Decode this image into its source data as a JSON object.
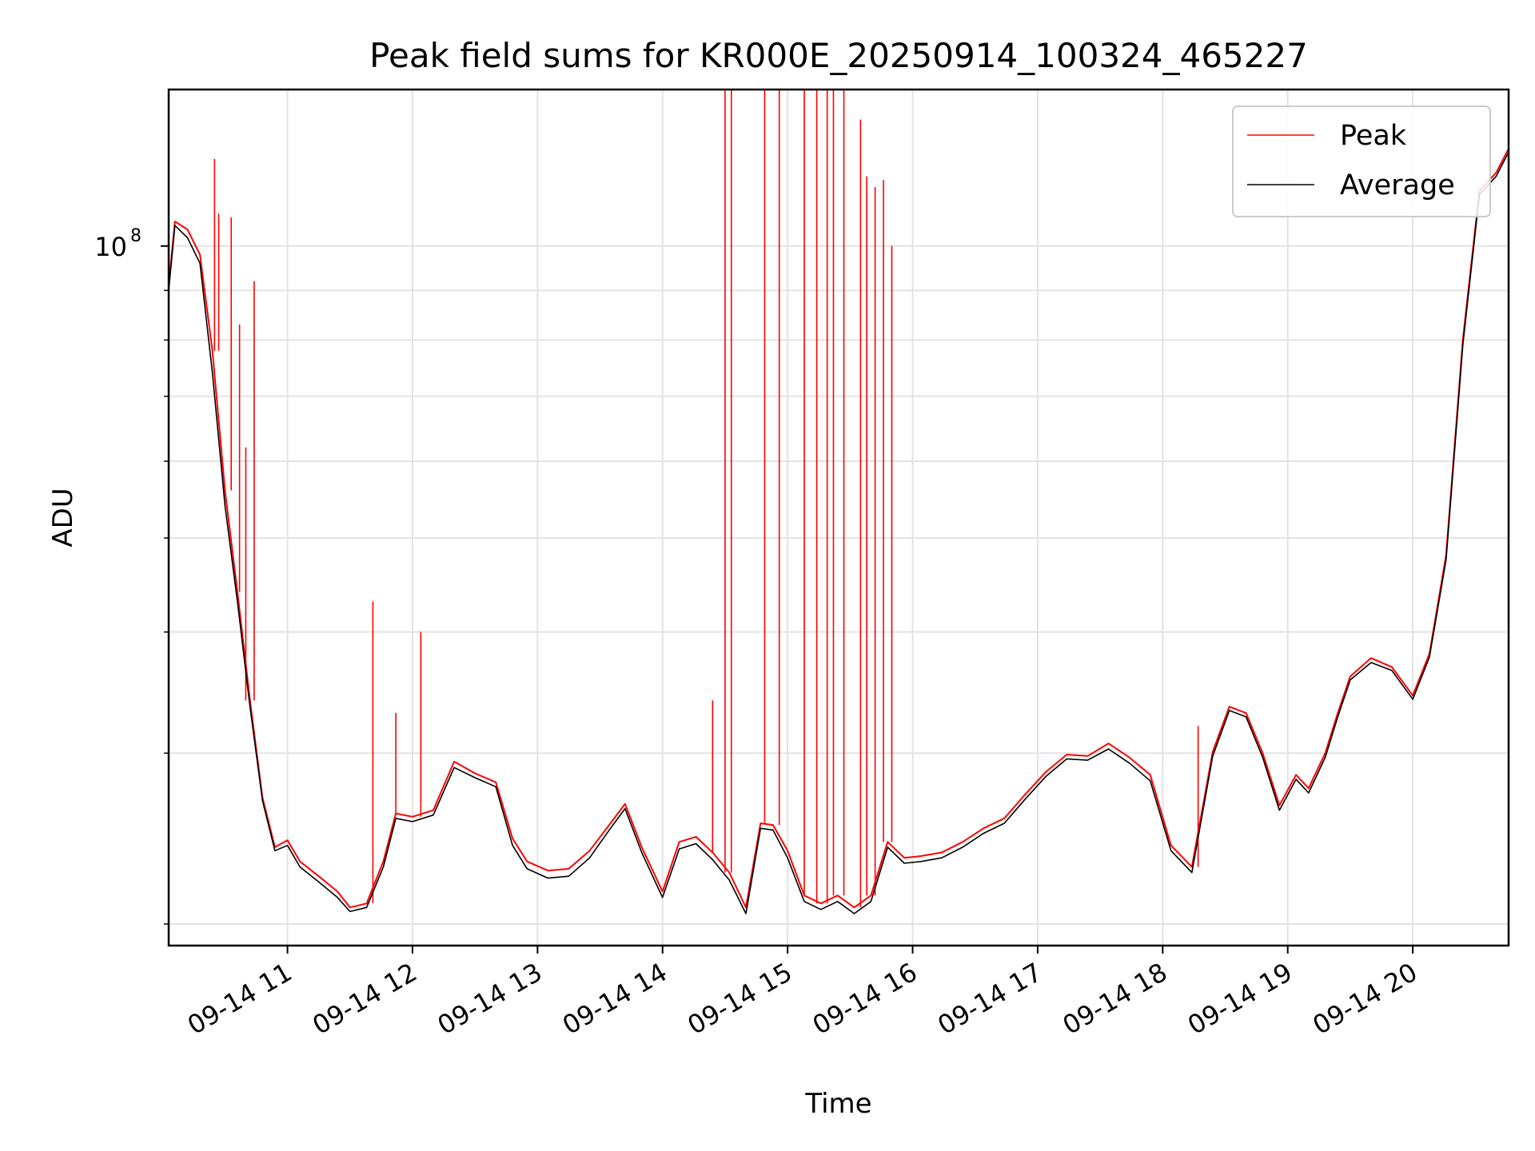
{
  "chart_data": {
    "type": "line",
    "title": "Peak field sums for KR000E_20250914_100324_465227",
    "xlabel": "Time",
    "ylabel": "ADU",
    "yscale": "log",
    "ylim": [
      19000000,
      145000000
    ],
    "xlim": [
      "2025-09-14 10:03",
      "2025-09-14 20:46"
    ],
    "grid": true,
    "legend_position": "top-right",
    "x_tick_labels": [
      "09-14 11",
      "09-14 12",
      "09-14 13",
      "09-14 14",
      "09-14 15",
      "09-14 16",
      "09-14 17",
      "09-14 18",
      "09-14 19",
      "09-14 20"
    ],
    "x_ticks": [
      "2025-09-14 11:00",
      "2025-09-14 12:00",
      "2025-09-14 13:00",
      "2025-09-14 14:00",
      "2025-09-14 15:00",
      "2025-09-14 16:00",
      "2025-09-14 17:00",
      "2025-09-14 18:00",
      "2025-09-14 19:00",
      "2025-09-14 20:00"
    ],
    "y_tick_labels": [
      {
        "base": "10",
        "exp": "8",
        "value": 100000000
      }
    ],
    "y_minor_ticks": [
      20000000,
      30000000,
      40000000,
      50000000,
      60000000,
      70000000,
      80000000,
      90000000,
      200000000
    ],
    "series": [
      {
        "name": "Peak",
        "color": "#ff0000",
        "x": [
          "2025-09-14 10:03",
          "2025-09-14 10:06",
          "2025-09-14 10:12",
          "2025-09-14 10:18",
          "2025-09-14 10:24",
          "2025-09-14 10:30",
          "2025-09-14 10:36",
          "2025-09-14 10:42",
          "2025-09-14 10:48",
          "2025-09-14 10:54",
          "2025-09-14 11:00",
          "2025-09-14 11:06",
          "2025-09-14 11:15",
          "2025-09-14 11:24",
          "2025-09-14 11:30",
          "2025-09-14 11:38",
          "2025-09-14 11:46",
          "2025-09-14 11:52",
          "2025-09-14 12:00",
          "2025-09-14 12:10",
          "2025-09-14 12:20",
          "2025-09-14 12:30",
          "2025-09-14 12:40",
          "2025-09-14 12:48",
          "2025-09-14 12:55",
          "2025-09-14 13:05",
          "2025-09-14 13:15",
          "2025-09-14 13:25",
          "2025-09-14 13:35",
          "2025-09-14 13:42",
          "2025-09-14 13:50",
          "2025-09-14 14:00",
          "2025-09-14 14:08",
          "2025-09-14 14:16",
          "2025-09-14 14:24",
          "2025-09-14 14:32",
          "2025-09-14 14:40",
          "2025-09-14 14:47",
          "2025-09-14 14:53",
          "2025-09-14 15:00",
          "2025-09-14 15:08",
          "2025-09-14 15:16",
          "2025-09-14 15:24",
          "2025-09-14 15:32",
          "2025-09-14 15:40",
          "2025-09-14 15:48",
          "2025-09-14 15:56",
          "2025-09-14 16:04",
          "2025-09-14 16:14",
          "2025-09-14 16:24",
          "2025-09-14 16:34",
          "2025-09-14 16:44",
          "2025-09-14 16:54",
          "2025-09-14 17:04",
          "2025-09-14 17:14",
          "2025-09-14 17:24",
          "2025-09-14 17:34",
          "2025-09-14 17:44",
          "2025-09-14 17:54",
          "2025-09-14 18:04",
          "2025-09-14 18:14",
          "2025-09-14 18:24",
          "2025-09-14 18:32",
          "2025-09-14 18:40",
          "2025-09-14 18:48",
          "2025-09-14 18:56",
          "2025-09-14 19:04",
          "2025-09-14 19:10",
          "2025-09-14 19:18",
          "2025-09-14 19:24",
          "2025-09-14 19:30",
          "2025-09-14 19:40",
          "2025-09-14 19:50",
          "2025-09-14 20:00",
          "2025-09-14 20:08",
          "2025-09-14 20:16",
          "2025-09-14 20:24",
          "2025-09-14 20:32",
          "2025-09-14 20:40",
          "2025-09-14 20:46"
        ],
        "values": [
          91000000,
          106000000,
          104000000,
          98000000,
          78000000,
          56000000,
          44000000,
          34000000,
          27000000,
          24000000,
          24400000,
          23200000,
          22400000,
          21600000,
          20800000,
          21000000,
          23200000,
          26000000,
          25800000,
          26200000,
          29400000,
          28600000,
          28000000,
          24500000,
          23200000,
          22700000,
          22800000,
          23800000,
          25400000,
          26600000,
          24000000,
          21600000,
          24300000,
          24600000,
          23700000,
          22600000,
          20800000,
          25400000,
          25300000,
          23800000,
          21400000,
          21000000,
          21400000,
          20800000,
          21400000,
          24300000,
          23400000,
          23500000,
          23700000,
          24300000,
          25100000,
          25700000,
          27200000,
          28700000,
          29900000,
          29800000,
          30700000,
          29700000,
          28500000,
          24100000,
          22900000,
          30100000,
          33500000,
          33000000,
          30000000,
          26500000,
          28500000,
          27600000,
          30000000,
          33000000,
          36000000,
          37600000,
          36800000,
          34400000,
          38000000,
          48000000,
          80000000,
          114000000,
          119000000,
          126000000
        ]
      },
      {
        "name": "Average",
        "color": "#000000",
        "x": [
          "2025-09-14 10:03",
          "2025-09-14 10:06",
          "2025-09-14 10:12",
          "2025-09-14 10:18",
          "2025-09-14 10:24",
          "2025-09-14 10:30",
          "2025-09-14 10:36",
          "2025-09-14 10:42",
          "2025-09-14 10:48",
          "2025-09-14 10:54",
          "2025-09-14 11:00",
          "2025-09-14 11:06",
          "2025-09-14 11:15",
          "2025-09-14 11:24",
          "2025-09-14 11:30",
          "2025-09-14 11:38",
          "2025-09-14 11:46",
          "2025-09-14 11:52",
          "2025-09-14 12:00",
          "2025-09-14 12:10",
          "2025-09-14 12:20",
          "2025-09-14 12:30",
          "2025-09-14 12:40",
          "2025-09-14 12:48",
          "2025-09-14 12:55",
          "2025-09-14 13:05",
          "2025-09-14 13:15",
          "2025-09-14 13:25",
          "2025-09-14 13:35",
          "2025-09-14 13:42",
          "2025-09-14 13:50",
          "2025-09-14 14:00",
          "2025-09-14 14:08",
          "2025-09-14 14:16",
          "2025-09-14 14:24",
          "2025-09-14 14:32",
          "2025-09-14 14:40",
          "2025-09-14 14:47",
          "2025-09-14 14:53",
          "2025-09-14 15:00",
          "2025-09-14 15:08",
          "2025-09-14 15:16",
          "2025-09-14 15:24",
          "2025-09-14 15:32",
          "2025-09-14 15:40",
          "2025-09-14 15:48",
          "2025-09-14 15:56",
          "2025-09-14 16:04",
          "2025-09-14 16:14",
          "2025-09-14 16:24",
          "2025-09-14 16:34",
          "2025-09-14 16:44",
          "2025-09-14 16:54",
          "2025-09-14 17:04",
          "2025-09-14 17:14",
          "2025-09-14 17:24",
          "2025-09-14 17:34",
          "2025-09-14 17:44",
          "2025-09-14 17:54",
          "2025-09-14 18:04",
          "2025-09-14 18:14",
          "2025-09-14 18:24",
          "2025-09-14 18:32",
          "2025-09-14 18:40",
          "2025-09-14 18:48",
          "2025-09-14 18:56",
          "2025-09-14 19:04",
          "2025-09-14 19:10",
          "2025-09-14 19:18",
          "2025-09-14 19:24",
          "2025-09-14 19:30",
          "2025-09-14 19:40",
          "2025-09-14 19:50",
          "2025-09-14 20:00",
          "2025-09-14 20:08",
          "2025-09-14 20:16",
          "2025-09-14 20:24",
          "2025-09-14 20:32",
          "2025-09-14 20:40",
          "2025-09-14 20:46"
        ],
        "values": [
          90000000,
          105000000,
          102000000,
          96000000,
          74000000,
          54000000,
          43000000,
          33500000,
          26800000,
          23800000,
          24100000,
          22900000,
          22100000,
          21300000,
          20600000,
          20800000,
          22900000,
          25700000,
          25500000,
          25900000,
          29000000,
          28300000,
          27700000,
          24100000,
          22800000,
          22300000,
          22400000,
          23400000,
          25100000,
          26300000,
          23700000,
          21300000,
          23900000,
          24200000,
          23300000,
          22200000,
          20500000,
          25100000,
          25000000,
          23400000,
          21100000,
          20700000,
          21100000,
          20500000,
          21100000,
          24000000,
          23100000,
          23200000,
          23400000,
          24000000,
          24800000,
          25400000,
          26900000,
          28400000,
          29600000,
          29500000,
          30300000,
          29300000,
          28100000,
          23800000,
          22600000,
          29800000,
          33200000,
          32700000,
          29700000,
          26200000,
          28200000,
          27300000,
          29700000,
          32700000,
          35700000,
          37200000,
          36500000,
          34100000,
          37700000,
          47500000,
          79000000,
          113000000,
          118000000,
          125000000
        ]
      }
    ],
    "peak_spikes": [
      {
        "x": "2025-09-14 10:25",
        "value": 123000000
      },
      {
        "x": "2025-09-14 10:27",
        "value": 108000000
      },
      {
        "x": "2025-09-14 10:33",
        "value": 107000000
      },
      {
        "x": "2025-09-14 10:37",
        "value": 83000000
      },
      {
        "x": "2025-09-14 10:40",
        "value": 62000000
      },
      {
        "x": "2025-09-14 10:44",
        "value": 92000000
      },
      {
        "x": "2025-09-14 11:41",
        "value": 43000000
      },
      {
        "x": "2025-09-14 11:52",
        "value": 33000000
      },
      {
        "x": "2025-09-14 12:04",
        "value": 40000000
      },
      {
        "x": "2025-09-14 14:24",
        "value": 34000000
      },
      {
        "x": "2025-09-14 14:30",
        "value": 145000000
      },
      {
        "x": "2025-09-14 14:33",
        "value": 145000000
      },
      {
        "x": "2025-09-14 14:49",
        "value": 145000000
      },
      {
        "x": "2025-09-14 14:56",
        "value": 145000000
      },
      {
        "x": "2025-09-14 15:08",
        "value": 145000000
      },
      {
        "x": "2025-09-14 15:14",
        "value": 145000000
      },
      {
        "x": "2025-09-14 15:19",
        "value": 145000000
      },
      {
        "x": "2025-09-14 15:22",
        "value": 145000000
      },
      {
        "x": "2025-09-14 15:27",
        "value": 145000000
      },
      {
        "x": "2025-09-14 15:35",
        "value": 135000000
      },
      {
        "x": "2025-09-14 15:38",
        "value": 118000000
      },
      {
        "x": "2025-09-14 15:42",
        "value": 115000000
      },
      {
        "x": "2025-09-14 15:46",
        "value": 117000000
      },
      {
        "x": "2025-09-14 15:50",
        "value": 100000000
      },
      {
        "x": "2025-09-14 18:17",
        "value": 32000000
      }
    ]
  }
}
